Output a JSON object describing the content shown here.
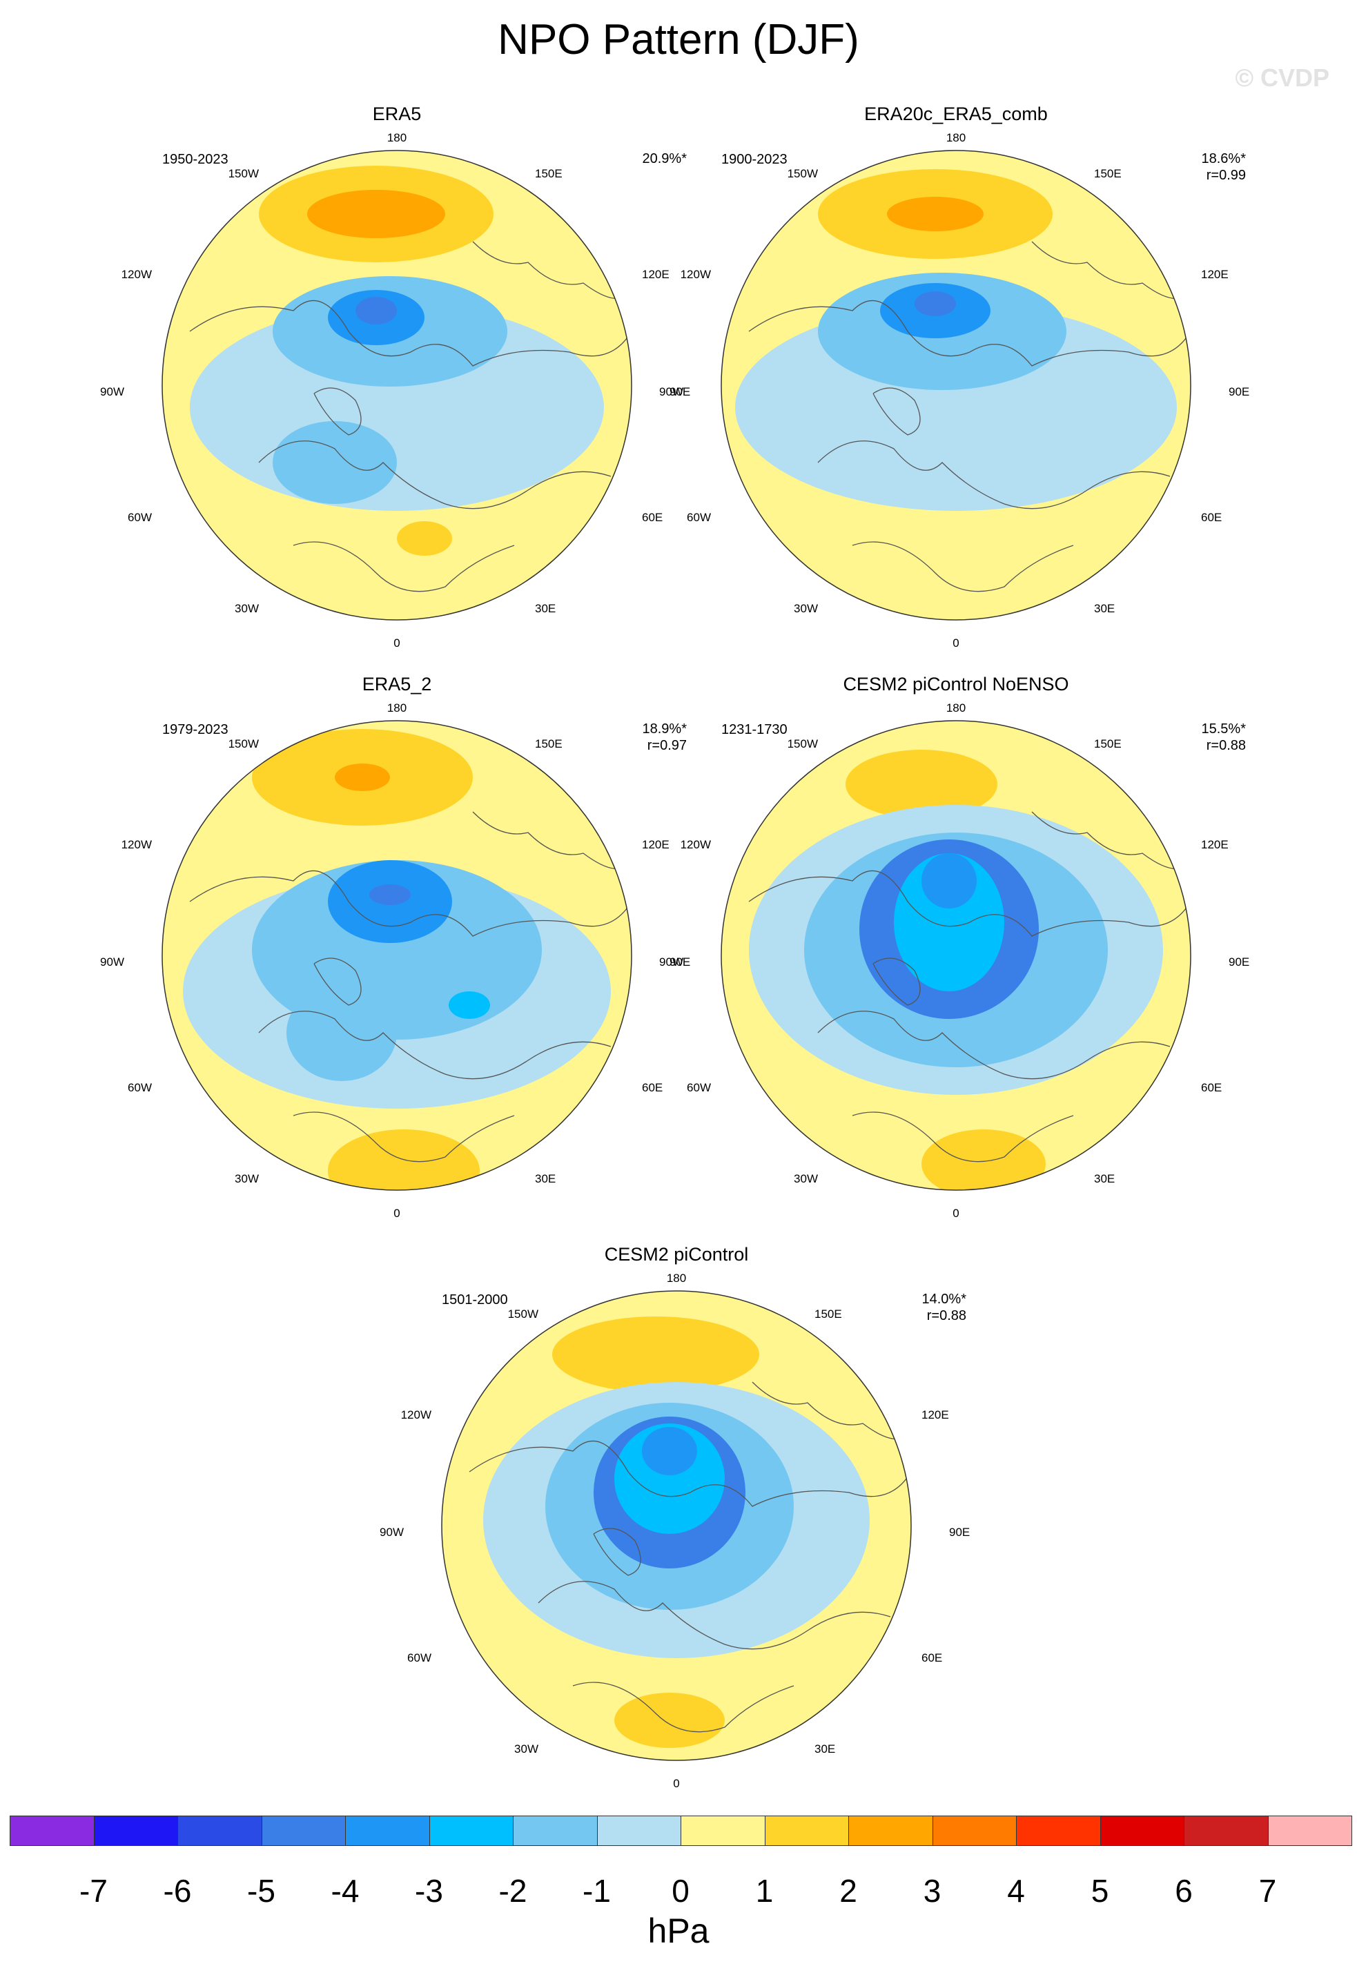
{
  "title": "NPO Pattern (DJF)",
  "watermark": "© CVDP",
  "longitude_labels": {
    "top": "180",
    "bottom": "0",
    "left": "90W",
    "right": "90E",
    "ul": "150W",
    "ur": "150E",
    "ml_top": "120W",
    "mr_top": "120E",
    "ml_bot": "60W",
    "mr_bot": "60E",
    "ll": "30W",
    "lr": "30E"
  },
  "panels": [
    {
      "name": "ERA5",
      "years": "1950-2023",
      "pct": "20.9%*",
      "r": ""
    },
    {
      "name": "ERA20c_ERA5_comb",
      "years": "1900-2023",
      "pct": "18.6%*",
      "r": "r=0.99"
    },
    {
      "name": "ERA5_2",
      "years": "1979-2023",
      "pct": "18.9%*",
      "r": "r=0.97"
    },
    {
      "name": "CESM2 piControl NoENSO",
      "years": "1231-1730",
      "pct": "15.5%*",
      "r": "r=0.88"
    },
    {
      "name": "CESM2 piControl",
      "years": "1501-2000",
      "pct": "14.0%*",
      "r": "r=0.88"
    }
  ],
  "colorbar": {
    "ticks": [
      "-7",
      "-6",
      "-5",
      "-4",
      "-3",
      "-2",
      "-1",
      "0",
      "1",
      "2",
      "3",
      "4",
      "5",
      "6",
      "7"
    ],
    "unit": "hPa",
    "colors": [
      "#8a2be2",
      "#1e16f5",
      "#2a4be6",
      "#3a7ee8",
      "#1e96f5",
      "#00bfff",
      "#74c7f0",
      "#b4def2",
      "#fff68f",
      "#ffd42a",
      "#ffa600",
      "#ff7b00",
      "#ff3300",
      "#e00000",
      "#cd1f1f",
      "#ffb2b4"
    ]
  }
}
